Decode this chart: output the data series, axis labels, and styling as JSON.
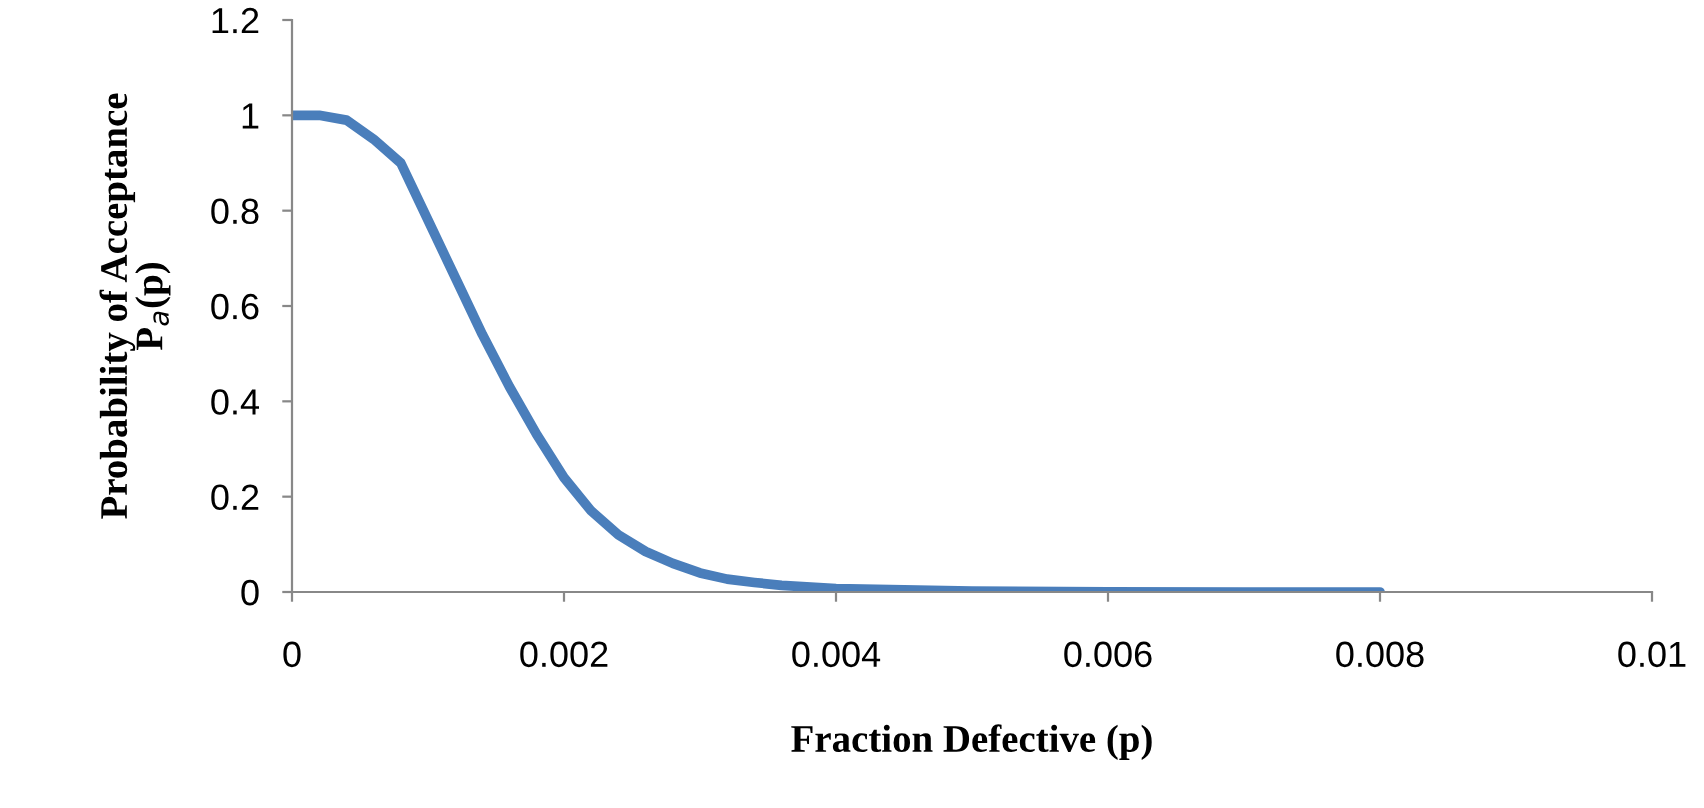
{
  "chart_data": {
    "type": "line",
    "xlabel": "Fraction Defective (p)",
    "ylabel": "Probability of Acceptance\nP$_{a}$(p)",
    "series": [
      {
        "color": "#4a7ebb",
        "x": [
          0,
          0.0002,
          0.0004,
          0.0006,
          0.0008,
          0.001,
          0.0012,
          0.0014,
          0.0016,
          0.0018,
          0.002,
          0.0022,
          0.0024,
          0.0026,
          0.0028,
          0.003,
          0.0032,
          0.0034,
          0.0036,
          0.004,
          0.005,
          0.006,
          0.007,
          0.008
        ],
        "values": [
          1,
          1,
          0.99,
          0.95,
          0.9,
          0.78,
          0.66,
          0.54,
          0.43,
          0.33,
          0.24,
          0.17,
          0.12,
          0.085,
          0.06,
          0.04,
          0.027,
          0.02,
          0.014,
          0.007,
          0.002,
          0.0005,
          0,
          0
        ]
      }
    ],
    "xlim": [
      0,
      0.01
    ],
    "xticks": [
      0,
      0.002,
      0.004,
      0.006,
      0.008,
      0.01
    ],
    "ylim": [
      0,
      1.2
    ],
    "yticks": [
      0,
      0.2,
      0.4,
      0.6,
      0.8,
      1,
      1.2
    ],
    "grid": false,
    "marker": "none",
    "line_style": "solid"
  }
}
